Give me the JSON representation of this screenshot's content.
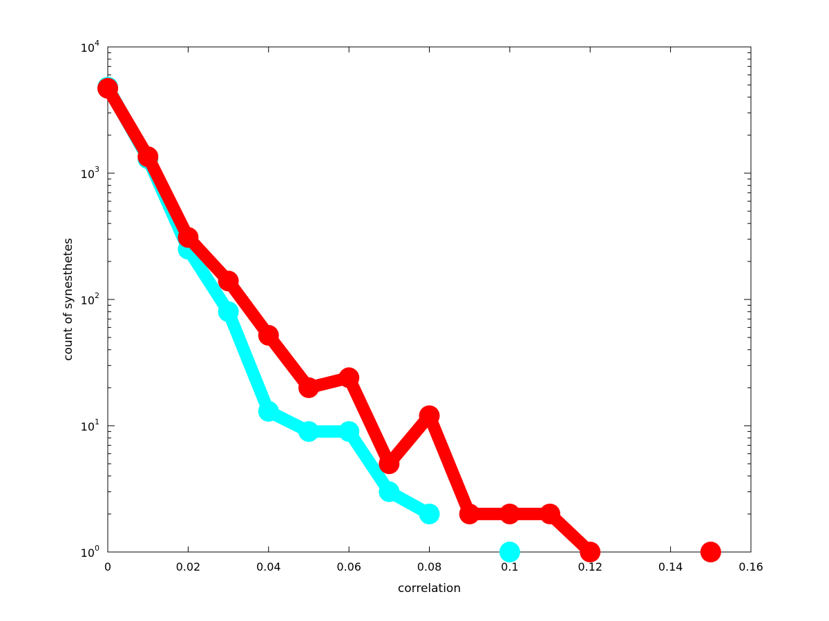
{
  "chart_data": {
    "type": "line",
    "title": "",
    "xlabel": "correlation",
    "ylabel": "count of synesthetes",
    "xlim": [
      0,
      0.16
    ],
    "ylim": [
      1,
      10000
    ],
    "yscale": "log",
    "grid": false,
    "x_ticks": [
      0,
      0.02,
      0.04,
      0.06,
      0.08,
      0.1,
      0.12,
      0.14,
      0.16
    ],
    "x_tick_labels": [
      "0",
      "0.02",
      "0.04",
      "0.06",
      "0.08",
      "0.1",
      "0.12",
      "0.14",
      "0.16"
    ],
    "y_ticks": [
      {
        "value": 1,
        "base": "10",
        "exp": "0"
      },
      {
        "value": 10,
        "base": "10",
        "exp": "1"
      },
      {
        "value": 100,
        "base": "10",
        "exp": "2"
      },
      {
        "value": 1000,
        "base": "10",
        "exp": "3"
      },
      {
        "value": 10000,
        "base": "10",
        "exp": "4"
      }
    ],
    "series": [
      {
        "color": "#00ffff",
        "x": [
          0,
          0.01,
          0.02,
          0.03,
          0.04,
          0.05,
          0.06,
          0.07,
          0.08,
          0.1
        ],
        "values": [
          4800,
          1300,
          250,
          80,
          13,
          9,
          9,
          3,
          2,
          1
        ],
        "segments": [
          [
            0,
            8
          ],
          [
            9,
            9
          ]
        ]
      },
      {
        "color": "#ff0000",
        "x": [
          0,
          0.01,
          0.02,
          0.03,
          0.04,
          0.05,
          0.06,
          0.07,
          0.08,
          0.09,
          0.1,
          0.11,
          0.12,
          0.15
        ],
        "values": [
          4700,
          1350,
          310,
          140,
          52,
          20,
          24,
          5,
          12,
          2,
          2,
          2,
          1,
          1
        ],
        "segments": [
          [
            0,
            12
          ],
          [
            13,
            13
          ]
        ]
      }
    ]
  }
}
